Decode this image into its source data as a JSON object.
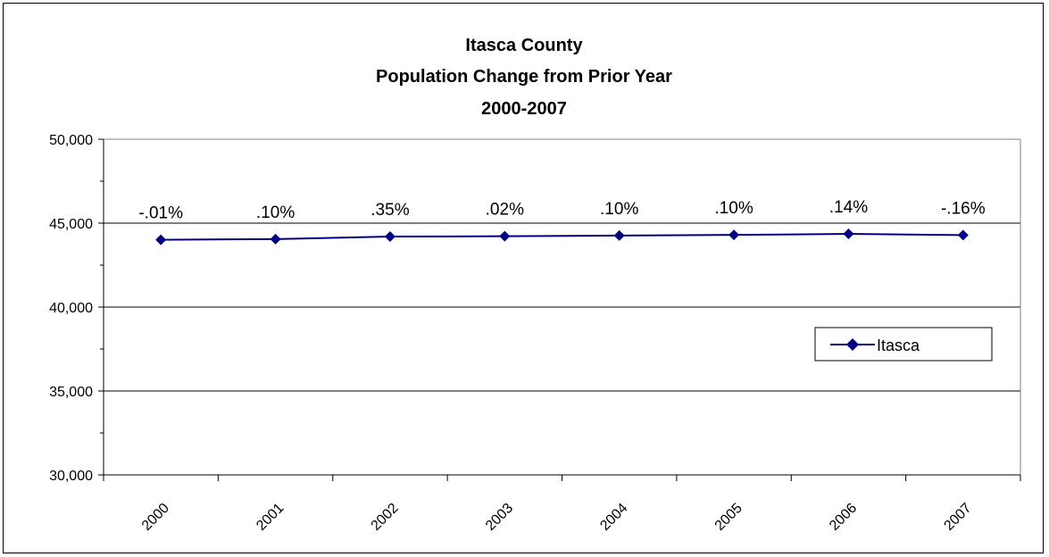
{
  "chart_data": {
    "type": "line",
    "title": [
      "Itasca County",
      "Population Change from Prior Year",
      "2000-2007"
    ],
    "categories": [
      "2000",
      "2001",
      "2002",
      "2003",
      "2004",
      "2005",
      "2006",
      "2007"
    ],
    "series": [
      {
        "name": "Itasca",
        "values": [
          44010,
          44050,
          44200,
          44220,
          44260,
          44300,
          44360,
          44290
        ],
        "data_labels": [
          "-.01%",
          ".10%",
          ".35%",
          ".02%",
          ".10%",
          ".10%",
          ".14%",
          "-.16%"
        ]
      }
    ],
    "ylim": [
      30000,
      50000
    ],
    "y_ticks": [
      "30,000",
      "35,000",
      "40,000",
      "45,000",
      "50,000"
    ],
    "grid": true,
    "legend_position": "right",
    "colors": {
      "series": "#000080",
      "grid": "#000000",
      "plot_border": "#808080"
    }
  }
}
